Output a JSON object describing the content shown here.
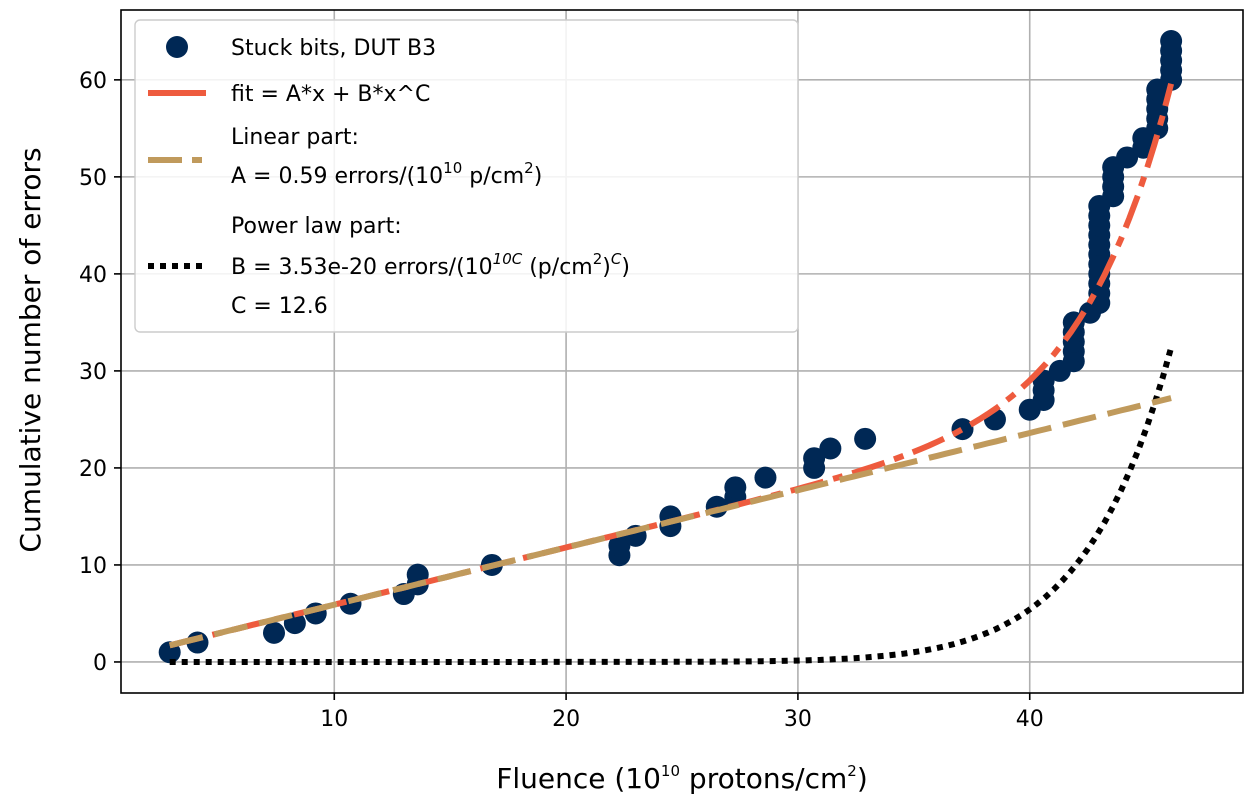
{
  "chart_data": {
    "type": "scatter",
    "title": "",
    "xlabel": {
      "pre": "Fluence (10",
      "sup": "10",
      "post": " protons/cm",
      "sup2": "2",
      "end": ")"
    },
    "ylabel": "Cumulative number of errors",
    "xlim": [
      0.8,
      49.2
    ],
    "ylim": [
      -3.2,
      67.2
    ],
    "xticks": [
      10,
      20,
      30,
      40
    ],
    "yticks": [
      0,
      10,
      20,
      30,
      40,
      50,
      60
    ],
    "grid": true,
    "legend_position": "top-left",
    "colors": {
      "points": "#002855",
      "fit": "#ee5b3e",
      "linear": "#c09a5c",
      "power": "#000000"
    },
    "series": [
      {
        "name": "Stuck bits, DUT B3",
        "kind": "scatter",
        "points": [
          [
            2.9,
            1
          ],
          [
            4.1,
            2
          ],
          [
            7.4,
            3
          ],
          [
            8.3,
            4
          ],
          [
            9.2,
            5
          ],
          [
            10.7,
            6
          ],
          [
            13.0,
            7
          ],
          [
            13.6,
            8
          ],
          [
            13.6,
            9
          ],
          [
            16.8,
            10
          ],
          [
            22.3,
            11
          ],
          [
            22.3,
            12
          ],
          [
            23.0,
            13
          ],
          [
            24.5,
            14
          ],
          [
            24.5,
            15
          ],
          [
            26.5,
            16
          ],
          [
            27.3,
            17
          ],
          [
            27.3,
            18
          ],
          [
            28.6,
            19
          ],
          [
            30.7,
            20
          ],
          [
            30.7,
            21
          ],
          [
            31.4,
            22
          ],
          [
            32.9,
            23
          ],
          [
            37.1,
            24
          ],
          [
            38.5,
            25
          ],
          [
            40.0,
            26
          ],
          [
            40.6,
            27
          ],
          [
            40.6,
            28
          ],
          [
            40.6,
            29
          ],
          [
            41.3,
            30
          ],
          [
            41.9,
            31
          ],
          [
            41.9,
            32
          ],
          [
            41.9,
            33
          ],
          [
            41.9,
            34
          ],
          [
            41.9,
            35
          ],
          [
            42.6,
            36
          ],
          [
            43.0,
            37
          ],
          [
            43.0,
            38
          ],
          [
            43.0,
            39
          ],
          [
            43.0,
            40
          ],
          [
            43.0,
            41
          ],
          [
            43.0,
            42
          ],
          [
            43.0,
            43
          ],
          [
            43.0,
            44
          ],
          [
            43.0,
            45
          ],
          [
            43.0,
            46
          ],
          [
            43.0,
            47
          ],
          [
            43.6,
            48
          ],
          [
            43.6,
            49
          ],
          [
            43.6,
            50
          ],
          [
            43.6,
            51
          ],
          [
            44.2,
            52
          ],
          [
            44.9,
            53
          ],
          [
            44.9,
            54
          ],
          [
            45.5,
            55
          ],
          [
            45.5,
            56
          ],
          [
            45.5,
            57
          ],
          [
            45.5,
            58
          ],
          [
            45.5,
            59
          ],
          [
            46.1,
            60
          ],
          [
            46.1,
            61
          ],
          [
            46.1,
            62
          ],
          [
            46.1,
            63
          ],
          [
            46.1,
            64
          ]
        ]
      },
      {
        "name": "fit = A*x + B*x^C",
        "kind": "fit"
      },
      {
        "name": "Linear part:",
        "kind": "linear"
      },
      {
        "name": "Power law part:",
        "kind": "power"
      }
    ],
    "fit_params": {
      "A": 0.59,
      "B": 3.53e-20,
      "C": 12.6,
      "x_from": 2.9,
      "x_to": 46.1
    },
    "legend": {
      "entry1": "Stuck bits, DUT B3",
      "entry2": "fit = A*x + B*x^C",
      "entry3_line1": "Linear part:",
      "entry3_line2": {
        "pre": "A = 0.59 errors/(10",
        "sup": "10",
        "post": " p/cm",
        "sup2": "2",
        "end": ")"
      },
      "entry4_line1": "Power law part:",
      "entry4_line2": {
        "pre": "B = 3.53e-20 errors/(10",
        "sup": "10C",
        "mid": " (p/cm",
        "sup2": "2",
        "end": ")",
        "sup3": "C",
        "tail": ")"
      },
      "entry4_line3": "C = 12.6"
    }
  }
}
